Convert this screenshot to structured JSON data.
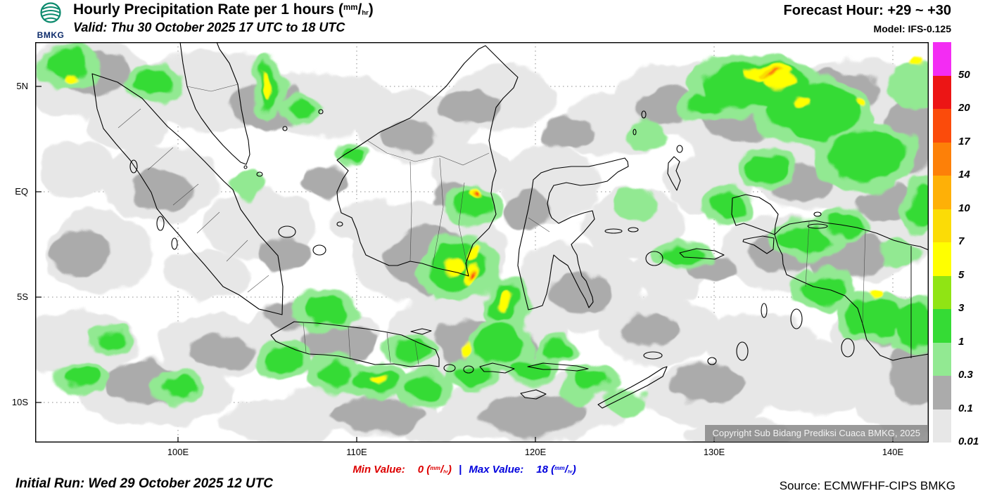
{
  "header": {
    "logo_text": "BMKG",
    "title_main": "Hourly Precipitation Rate per 1 hours",
    "valid_line": "Valid: Thu 30 October 2025 17 UTC to 18 UTC",
    "forecast_hour": "Forecast Hour: +29 ~ +30",
    "model": "Model: IFS-0.125"
  },
  "units": {
    "open": "(",
    "num": "mm",
    "slash": "/",
    "den": "hr",
    "close": ")"
  },
  "axes": {
    "lat": [
      "5N",
      "EQ",
      "5S",
      "10S"
    ],
    "lon": [
      "100E",
      "110E",
      "120E",
      "130E",
      "140E"
    ]
  },
  "legend": {
    "labels": [
      "50",
      "20",
      "17",
      "14",
      "10",
      "7",
      "5",
      "3",
      "1",
      "0.3",
      "0.1",
      "0.01"
    ],
    "colors": [
      "#F32CF3",
      "#EC1515",
      "#FB4B0B",
      "#FD8008",
      "#FEB007",
      "#FBDC06",
      "#FFFF00",
      "#90E414",
      "#35DB35",
      "#92E992",
      "#ABABAB",
      "#E7E7E7"
    ]
  },
  "map": {
    "copyright": "Copyright Sub Bidang Prediksi Cuaca BMKG, 2025"
  },
  "footer": {
    "initial_run": "Initial Run: Wed 29 October 2025 12 UTC",
    "min_label": "Min Value:",
    "min_value": "0",
    "separator": "|",
    "max_label": "Max Value:",
    "max_value": "18",
    "source": "Source: ECMWFHF-CIPS BMKG"
  }
}
